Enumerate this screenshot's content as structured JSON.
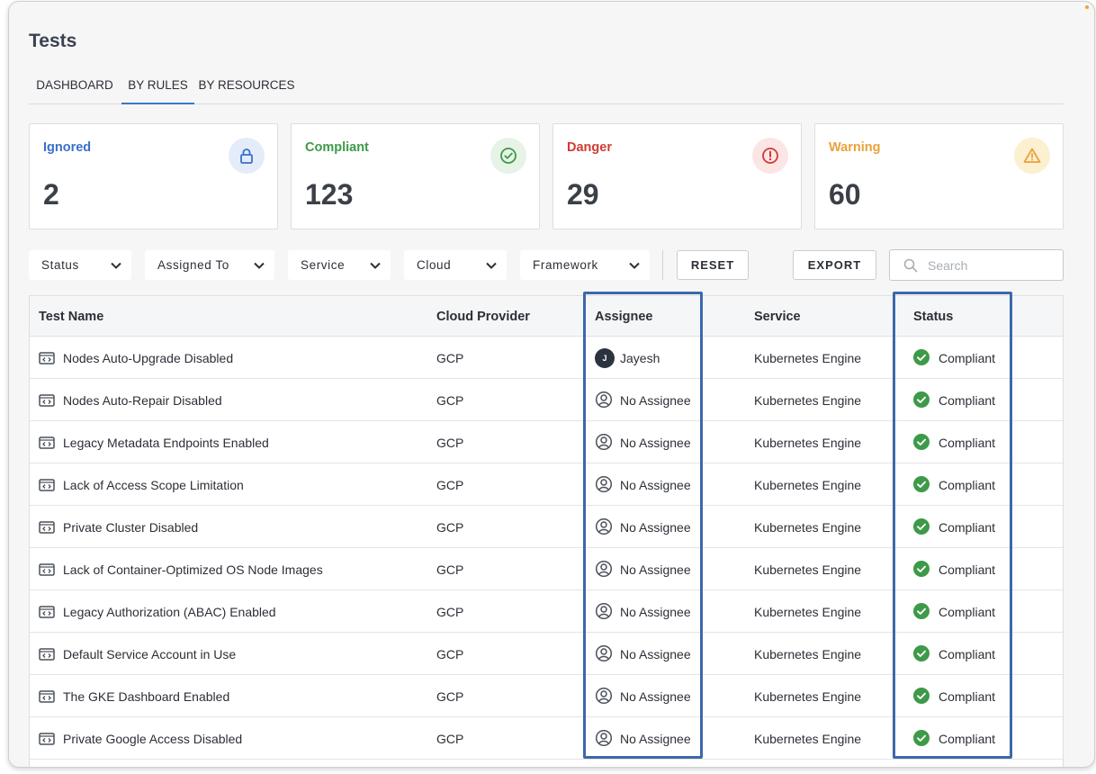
{
  "page": {
    "title": "Tests"
  },
  "tabs": [
    {
      "label": "DASHBOARD"
    },
    {
      "label": "BY RULES",
      "active": true
    },
    {
      "label": "BY RESOURCES"
    }
  ],
  "cards": [
    {
      "label": "Ignored",
      "count": "2",
      "color": "#3b6fc9",
      "bg": "#e4ecf9",
      "icon": "lock-icon"
    },
    {
      "label": "Compliant",
      "count": "123",
      "color": "#3d9a48",
      "bg": "#e6f3e6",
      "icon": "check-circle-icon"
    },
    {
      "label": "Danger",
      "count": "29",
      "color": "#d13a32",
      "bg": "#fbe6e5",
      "icon": "alert-circle-icon"
    },
    {
      "label": "Warning",
      "count": "60",
      "color": "#e8a23c",
      "bg": "#fbf0cf",
      "icon": "warning-triangle-icon"
    }
  ],
  "filters": [
    {
      "label": "Status"
    },
    {
      "label": "Assigned To"
    },
    {
      "label": "Service"
    },
    {
      "label": "Cloud"
    },
    {
      "label": "Framework"
    }
  ],
  "actions": {
    "reset": "RESET",
    "export": "EXPORT"
  },
  "search": {
    "placeholder": "Search",
    "value": ""
  },
  "table": {
    "columns": [
      "Test Name",
      "Cloud Provider",
      "Assignee",
      "Service",
      "Status"
    ],
    "rows": [
      {
        "name": "Nodes Auto-Upgrade Disabled",
        "cloud": "GCP",
        "assignee": "Jayesh",
        "avatar": "J",
        "service": "Kubernetes Engine",
        "status": "Compliant"
      },
      {
        "name": "Nodes Auto-Repair Disabled",
        "cloud": "GCP",
        "assignee": "No Assignee",
        "service": "Kubernetes Engine",
        "status": "Compliant"
      },
      {
        "name": "Legacy Metadata Endpoints Enabled",
        "cloud": "GCP",
        "assignee": "No Assignee",
        "service": "Kubernetes Engine",
        "status": "Compliant"
      },
      {
        "name": "Lack of Access Scope Limitation",
        "cloud": "GCP",
        "assignee": "No Assignee",
        "service": "Kubernetes Engine",
        "status": "Compliant"
      },
      {
        "name": "Private Cluster Disabled",
        "cloud": "GCP",
        "assignee": "No Assignee",
        "service": "Kubernetes Engine",
        "status": "Compliant"
      },
      {
        "name": "Lack of Container-Optimized OS Node Images",
        "cloud": "GCP",
        "assignee": "No Assignee",
        "service": "Kubernetes Engine",
        "status": "Compliant"
      },
      {
        "name": "Legacy Authorization (ABAC) Enabled",
        "cloud": "GCP",
        "assignee": "No Assignee",
        "service": "Kubernetes Engine",
        "status": "Compliant"
      },
      {
        "name": "Default Service Account in Use",
        "cloud": "GCP",
        "assignee": "No Assignee",
        "service": "Kubernetes Engine",
        "status": "Compliant"
      },
      {
        "name": "The GKE Dashboard Enabled",
        "cloud": "GCP",
        "assignee": "No Assignee",
        "service": "Kubernetes Engine",
        "status": "Compliant"
      },
      {
        "name": "Private Google Access Disabled",
        "cloud": "GCP",
        "assignee": "No Assignee",
        "service": "Kubernetes Engine",
        "status": "Compliant"
      }
    ]
  },
  "colors": {
    "accent": "#3b78c4",
    "highlight": "#3c68ac",
    "compliant": "#3d9a48"
  }
}
